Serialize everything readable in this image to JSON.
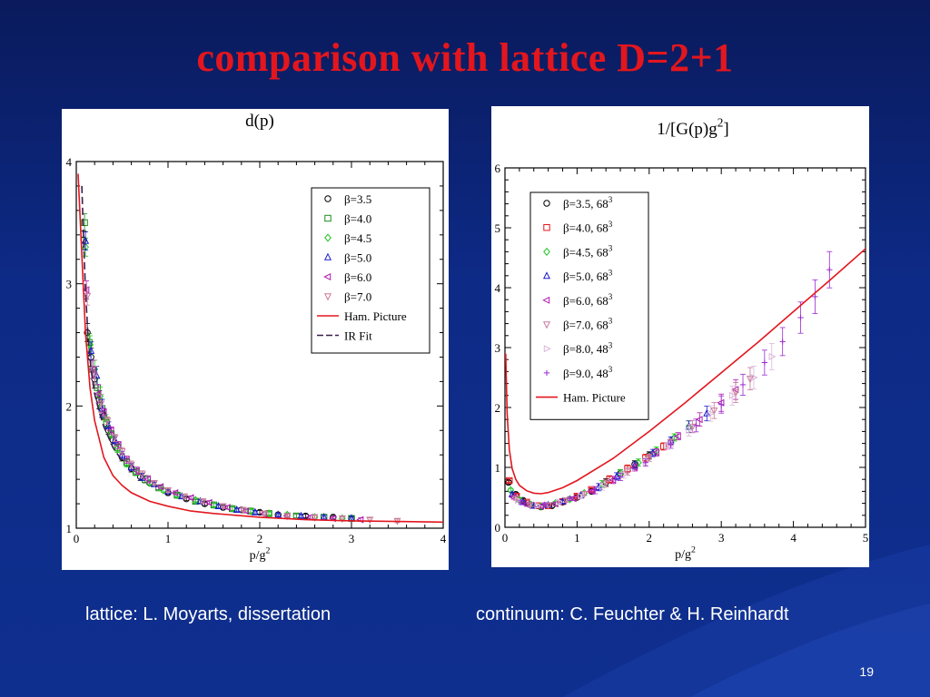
{
  "slide": {
    "title": "comparison with lattice D=2+1",
    "caption_left": "lattice: L. Moyarts, dissertation",
    "caption_right": "continuum: C. Feuchter & H. Reinhardt",
    "page_number": "19"
  },
  "colors": {
    "background": "#0d2a86",
    "title": "#e3161e",
    "ham_picture": "#e3161e",
    "ir_fit": "#3a1f4e"
  },
  "chart_data": [
    {
      "type": "scatter",
      "title": "d(p)",
      "xlabel": "p/g",
      "xlabel_sup": "2",
      "ylabel": "",
      "xlim": [
        0,
        4
      ],
      "ylim": [
        1,
        4
      ],
      "xticks": [
        "0",
        "1",
        "2",
        "3",
        "4"
      ],
      "yticks": [
        "1",
        "2",
        "3",
        "4"
      ],
      "legend_position": "top-right",
      "series": [
        {
          "name": "β=3.5",
          "symbol": "circle",
          "color": "#000000",
          "x": [
            0.08,
            0.12,
            0.16,
            0.2,
            0.25,
            0.3,
            0.35,
            0.4,
            0.5,
            0.6,
            0.7,
            0.8,
            1.0,
            1.2,
            1.4,
            1.6,
            1.8,
            2.0,
            2.2,
            2.5,
            2.8,
            3.0
          ],
          "y": [
            3.36,
            2.6,
            2.4,
            2.22,
            2.05,
            1.92,
            1.8,
            1.72,
            1.58,
            1.49,
            1.42,
            1.37,
            1.29,
            1.24,
            1.2,
            1.17,
            1.15,
            1.13,
            1.11,
            1.1,
            1.09,
            1.08
          ]
        },
        {
          "name": "β=4.0",
          "symbol": "square",
          "color": "#1a8a1a",
          "x": [
            0.09,
            0.14,
            0.18,
            0.23,
            0.28,
            0.33,
            0.38,
            0.45,
            0.55,
            0.65,
            0.75,
            0.9,
            1.1,
            1.3,
            1.5,
            1.7,
            1.9,
            2.1,
            2.4,
            2.7,
            3.0
          ],
          "y": [
            3.5,
            2.52,
            2.3,
            2.15,
            1.98,
            1.86,
            1.77,
            1.66,
            1.54,
            1.46,
            1.4,
            1.33,
            1.27,
            1.22,
            1.19,
            1.16,
            1.14,
            1.12,
            1.1,
            1.09,
            1.08
          ]
        },
        {
          "name": "β=4.5",
          "symbol": "diamond",
          "color": "#1fc41f",
          "x": [
            0.1,
            0.15,
            0.2,
            0.26,
            0.32,
            0.38,
            0.45,
            0.55,
            0.65,
            0.8,
            0.95,
            1.1,
            1.3,
            1.5,
            1.7,
            1.9,
            2.1,
            2.3,
            2.6,
            2.9
          ],
          "y": [
            3.3,
            2.5,
            2.3,
            2.08,
            1.9,
            1.77,
            1.65,
            1.53,
            1.46,
            1.37,
            1.31,
            1.27,
            1.23,
            1.19,
            1.16,
            1.14,
            1.12,
            1.11,
            1.09,
            1.08
          ]
        },
        {
          "name": "β=5.0",
          "symbol": "triangle-up",
          "color": "#1a1acc",
          "x": [
            0.1,
            0.16,
            0.22,
            0.28,
            0.35,
            0.42,
            0.5,
            0.6,
            0.72,
            0.85,
            1.0,
            1.15,
            1.35,
            1.55,
            1.75,
            1.95,
            2.2,
            2.45,
            2.7,
            3.0
          ],
          "y": [
            3.35,
            2.45,
            2.25,
            1.98,
            1.84,
            1.72,
            1.6,
            1.5,
            1.42,
            1.36,
            1.3,
            1.26,
            1.22,
            1.18,
            1.15,
            1.13,
            1.11,
            1.1,
            1.09,
            1.08
          ]
        },
        {
          "name": "β=6.0",
          "symbol": "triangle-left",
          "color": "#b01ab0",
          "x": [
            0.11,
            0.18,
            0.24,
            0.3,
            0.38,
            0.46,
            0.55,
            0.66,
            0.78,
            0.92,
            1.08,
            1.25,
            1.45,
            1.65,
            1.85,
            2.05,
            2.3,
            2.55,
            2.8,
            3.1
          ],
          "y": [
            2.95,
            2.3,
            2.1,
            1.95,
            1.8,
            1.68,
            1.56,
            1.47,
            1.4,
            1.34,
            1.29,
            1.25,
            1.21,
            1.17,
            1.14,
            1.12,
            1.1,
            1.09,
            1.08,
            1.07
          ]
        },
        {
          "name": "β=7.0",
          "symbol": "triangle-down",
          "color": "#c87a9a",
          "x": [
            0.12,
            0.2,
            0.27,
            0.34,
            0.42,
            0.5,
            0.6,
            0.72,
            0.85,
            1.0,
            1.18,
            1.38,
            1.6,
            1.82,
            2.05,
            2.3,
            2.6,
            2.9,
            3.2,
            3.5
          ],
          "y": [
            2.9,
            2.25,
            2.02,
            1.88,
            1.74,
            1.63,
            1.52,
            1.44,
            1.37,
            1.31,
            1.26,
            1.22,
            1.18,
            1.15,
            1.12,
            1.1,
            1.09,
            1.08,
            1.07,
            1.06
          ]
        },
        {
          "name": "Ham. Picture",
          "symbol": "line",
          "color": "#e3161e",
          "x": [
            0.02,
            0.05,
            0.1,
            0.15,
            0.2,
            0.3,
            0.4,
            0.5,
            0.6,
            0.8,
            1.0,
            1.25,
            1.5,
            2.0,
            2.5,
            3.0,
            3.5,
            4.0
          ],
          "y": [
            3.9,
            3.4,
            2.6,
            2.15,
            1.88,
            1.58,
            1.43,
            1.35,
            1.29,
            1.22,
            1.18,
            1.14,
            1.12,
            1.09,
            1.07,
            1.06,
            1.055,
            1.05
          ]
        },
        {
          "name": "IR Fit",
          "symbol": "dashed",
          "color": "#3a1f4e",
          "x": [
            0.06,
            0.08,
            0.1,
            0.13,
            0.16,
            0.2,
            0.25,
            0.3,
            0.4,
            0.5
          ],
          "y": [
            3.8,
            3.35,
            2.95,
            2.55,
            2.3,
            2.1,
            1.95,
            1.83,
            1.66,
            1.55
          ]
        }
      ]
    },
    {
      "type": "scatter",
      "title": "1/[G(p)g",
      "title_sup": "2",
      "title_end": "]",
      "xlabel": "p/g",
      "xlabel_sup": "2",
      "ylabel": "",
      "xlim": [
        0,
        5
      ],
      "ylim": [
        0,
        6
      ],
      "xticks": [
        "0",
        "1",
        "2",
        "3",
        "4",
        "5"
      ],
      "yticks": [
        "0",
        "1",
        "2",
        "3",
        "4",
        "5",
        "6"
      ],
      "legend_position": "top-left",
      "series": [
        {
          "name": "β=3.5, 68",
          "name_sup": "3",
          "symbol": "circle",
          "color": "#000000",
          "x": [
            0.05,
            0.15,
            0.25,
            0.35,
            0.5,
            0.65,
            0.8,
            1.0,
            1.2,
            1.4,
            1.6,
            1.8,
            2.0
          ],
          "y": [
            0.75,
            0.55,
            0.45,
            0.38,
            0.34,
            0.36,
            0.42,
            0.5,
            0.6,
            0.75,
            0.9,
            1.05,
            1.2
          ]
        },
        {
          "name": "β=4.0, 68",
          "name_sup": "3",
          "symbol": "square",
          "color": "#e3161e",
          "x": [
            0.06,
            0.16,
            0.3,
            0.45,
            0.6,
            0.8,
            1.0,
            1.2,
            1.45,
            1.7,
            1.95,
            2.2
          ],
          "y": [
            0.78,
            0.52,
            0.42,
            0.36,
            0.36,
            0.43,
            0.52,
            0.63,
            0.8,
            0.98,
            1.16,
            1.35
          ]
        },
        {
          "name": "β=4.5, 68",
          "name_sup": "3",
          "symbol": "diamond",
          "color": "#1fc41f",
          "x": [
            0.08,
            0.2,
            0.35,
            0.5,
            0.7,
            0.9,
            1.1,
            1.35,
            1.6,
            1.85,
            2.1,
            2.35,
            2.55
          ],
          "y": [
            0.62,
            0.46,
            0.38,
            0.35,
            0.4,
            0.47,
            0.57,
            0.72,
            0.9,
            1.08,
            1.28,
            1.5,
            1.68
          ]
        },
        {
          "name": "β=5.0, 68",
          "name_sup": "3",
          "symbol": "triangle-up",
          "color": "#1a1acc",
          "x": [
            0.1,
            0.25,
            0.4,
            0.6,
            0.8,
            1.05,
            1.3,
            1.55,
            1.8,
            2.05,
            2.3,
            2.55,
            2.8
          ],
          "y": [
            0.55,
            0.42,
            0.36,
            0.37,
            0.43,
            0.53,
            0.67,
            0.85,
            1.03,
            1.24,
            1.45,
            1.68,
            1.9
          ]
        },
        {
          "name": "β=6.0, 68",
          "name_sup": "3",
          "symbol": "triangle-left",
          "color": "#b01ab0",
          "x": [
            0.12,
            0.3,
            0.5,
            0.7,
            0.95,
            1.2,
            1.5,
            1.8,
            2.1,
            2.4,
            2.7,
            3.0,
            3.2
          ],
          "y": [
            0.5,
            0.38,
            0.35,
            0.39,
            0.48,
            0.6,
            0.79,
            1.0,
            1.25,
            1.52,
            1.8,
            2.08,
            2.3
          ]
        },
        {
          "name": "β=7.0, 68",
          "name_sup": "3",
          "symbol": "triangle-down",
          "color": "#c87a9a",
          "x": [
            0.15,
            0.35,
            0.6,
            0.85,
            1.1,
            1.4,
            1.7,
            2.0,
            2.3,
            2.6,
            2.9,
            3.2,
            3.4
          ],
          "y": [
            0.48,
            0.37,
            0.37,
            0.45,
            0.56,
            0.73,
            0.93,
            1.16,
            1.42,
            1.68,
            1.95,
            2.25,
            2.48
          ]
        },
        {
          "name": "β=8.0, 48",
          "name_sup": "3",
          "symbol": "triangle-right",
          "color": "#d9b8d9",
          "x": [
            0.18,
            0.45,
            0.75,
            1.05,
            1.35,
            1.65,
            1.95,
            2.25,
            2.55,
            2.85,
            3.15,
            3.45,
            3.7
          ],
          "y": [
            0.45,
            0.36,
            0.42,
            0.52,
            0.68,
            0.88,
            1.1,
            1.36,
            1.62,
            1.9,
            2.2,
            2.5,
            2.85
          ]
        },
        {
          "name": "β=9.0, 48",
          "name_sup": "3",
          "symbol": "plus",
          "color": "#9a2ad0",
          "x": [
            0.22,
            0.55,
            0.9,
            1.25,
            1.6,
            1.95,
            2.3,
            2.65,
            3.0,
            3.3,
            3.6,
            3.85,
            4.1,
            4.3,
            4.5
          ],
          "y": [
            0.42,
            0.38,
            0.48,
            0.62,
            0.84,
            1.08,
            1.38,
            1.7,
            2.05,
            2.38,
            2.75,
            3.1,
            3.5,
            3.85,
            4.3
          ]
        },
        {
          "name": "Ham. Picture",
          "symbol": "line",
          "color": "#e3161e",
          "x": [
            0.01,
            0.03,
            0.06,
            0.1,
            0.15,
            0.2,
            0.3,
            0.4,
            0.5,
            0.6,
            0.8,
            1.0,
            1.5,
            2.0,
            2.5,
            3.0,
            3.5,
            4.0,
            4.5,
            5.0
          ],
          "y": [
            2.9,
            1.9,
            1.3,
            0.98,
            0.8,
            0.7,
            0.61,
            0.57,
            0.56,
            0.58,
            0.66,
            0.78,
            1.15,
            1.6,
            2.08,
            2.58,
            3.08,
            3.6,
            4.12,
            4.65
          ]
        }
      ]
    }
  ]
}
